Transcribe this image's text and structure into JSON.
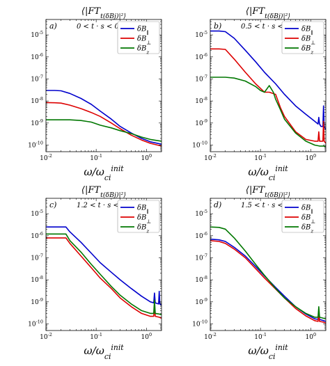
{
  "colors": {
    "par": "#0000cc",
    "perp": "#dd0000",
    "z": "#007700"
  },
  "chart_data": [
    {
      "type": "line",
      "panel_label": "a)",
      "title": "⟨|FT_t(δB_j)|²⟩",
      "time_range": "0 < t · s < 0.5",
      "xlabel": "ω/ω_ci^init",
      "xscale": "log",
      "yscale": "log",
      "xlim": [
        0.01,
        2
      ],
      "ylim": [
        5e-11,
        5e-05
      ],
      "xticks": [
        "10^-2",
        "10^-1",
        "10^0"
      ],
      "yticks": [
        "10^-10",
        "10^-9",
        "10^-8",
        "10^-7",
        "10^-6",
        "10^-5"
      ],
      "legend_position": "top-right",
      "series": [
        {
          "name": "δB_∥",
          "color_key": "par",
          "x": [
            0.01,
            0.015,
            0.02,
            0.03,
            0.05,
            0.08,
            0.12,
            0.2,
            0.3,
            0.5,
            0.8,
            1.2,
            2
          ],
          "y": [
            3e-08,
            3e-08,
            2.9e-08,
            2.2e-08,
            1.3e-08,
            7e-09,
            3.5e-09,
            1.5e-09,
            7e-10,
            3.5e-10,
            2e-10,
            1.4e-10,
            1.1e-10
          ]
        },
        {
          "name": "δB_⊥",
          "color_key": "perp",
          "x": [
            0.01,
            0.015,
            0.02,
            0.03,
            0.05,
            0.08,
            0.12,
            0.2,
            0.3,
            0.5,
            0.8,
            1.2,
            2
          ],
          "y": [
            8.5e-09,
            8.3e-09,
            8e-09,
            6.5e-09,
            4.5e-09,
            3e-09,
            2e-09,
            1e-09,
            5.5e-10,
            2.8e-10,
            1.7e-10,
            1.2e-10,
            9e-11
          ]
        },
        {
          "name": "δB_z",
          "color_key": "z",
          "x": [
            0.01,
            0.02,
            0.03,
            0.05,
            0.08,
            0.12,
            0.2,
            0.3,
            0.5,
            0.8,
            1.2,
            2
          ],
          "y": [
            1.4e-09,
            1.4e-09,
            1.4e-09,
            1.3e-09,
            1.1e-09,
            8e-10,
            6e-10,
            4.5e-10,
            3.3e-10,
            2.3e-10,
            1.8e-10,
            1.5e-10
          ]
        }
      ]
    },
    {
      "type": "line",
      "panel_label": "b)",
      "title": "⟨|FT_t(δB_j)|²⟩",
      "time_range": "0.5 < t · s < 1",
      "xlabel": "ω/ω_ci^init",
      "xscale": "log",
      "yscale": "log",
      "xlim": [
        0.01,
        2
      ],
      "ylim": [
        5e-11,
        5e-05
      ],
      "xticks": [
        "10^-2",
        "10^-1",
        "10^0"
      ],
      "yticks": [
        "10^-10",
        "10^-9",
        "10^-8",
        "10^-7",
        "10^-6",
        "10^-5"
      ],
      "legend_position": "top-right",
      "series": [
        {
          "name": "δB_∥",
          "color_key": "par",
          "x": [
            0.01,
            0.015,
            0.02,
            0.03,
            0.05,
            0.08,
            0.12,
            0.2,
            0.3,
            0.5,
            0.8,
            1.2,
            1.4,
            1.45,
            1.5,
            1.6,
            1.75,
            1.8,
            1.85,
            2
          ],
          "y": [
            1.5e-05,
            1.5e-05,
            1.4e-05,
            7e-06,
            2e-06,
            6e-07,
            2e-07,
            6e-08,
            2e-08,
            6e-09,
            2.5e-09,
            1.2e-09,
            9e-10,
            1.8e-09,
            9e-10,
            7e-10,
            7e-10,
            6e-09,
            7e-10,
            5e-10
          ]
        },
        {
          "name": "δB_⊥",
          "color_key": "perp",
          "x": [
            0.01,
            0.015,
            0.02,
            0.03,
            0.05,
            0.08,
            0.12,
            0.15,
            0.2,
            0.25,
            0.3,
            0.5,
            0.8,
            1.2,
            1.4,
            1.45,
            1.5,
            1.75,
            1.8,
            1.85,
            2
          ],
          "y": [
            2.3e-06,
            2.3e-06,
            2.2e-06,
            8e-07,
            2e-07,
            6e-08,
            2.5e-08,
            2.5e-08,
            2e-08,
            5e-09,
            2e-09,
            4e-10,
            1.8e-10,
            1.5e-10,
            1.5e-10,
            4e-10,
            1.5e-10,
            1.5e-10,
            1.2e-09,
            1.5e-10,
            1.2e-10
          ]
        },
        {
          "name": "δB_z",
          "color_key": "z",
          "x": [
            0.01,
            0.02,
            0.03,
            0.05,
            0.08,
            0.1,
            0.12,
            0.15,
            0.18,
            0.2,
            0.25,
            0.3,
            0.5,
            0.8,
            1.2,
            1.5,
            1.8,
            2
          ],
          "y": [
            1.2e-07,
            1.2e-07,
            1.1e-07,
            8e-08,
            4.5e-08,
            3e-08,
            2.5e-08,
            5e-08,
            2.5e-08,
            1.2e-08,
            4e-09,
            1.5e-09,
            3.5e-10,
            1.5e-10,
            1e-10,
            9e-11,
            9e-11,
            8e-11
          ]
        }
      ]
    },
    {
      "type": "line",
      "panel_label": "c)",
      "title": "⟨|FT_t(δB_j)|²⟩",
      "time_range": "1.2 < t · s < 1.5",
      "xlabel": "ω/ω_ci^init",
      "xscale": "log",
      "yscale": "log",
      "xlim": [
        0.01,
        2
      ],
      "ylim": [
        5e-11,
        5e-05
      ],
      "xticks": [
        "10^-2",
        "10^-1",
        "10^0"
      ],
      "yticks": [
        "10^-10",
        "10^-9",
        "10^-8",
        "10^-7",
        "10^-6",
        "10^-5"
      ],
      "legend_position": "top-right",
      "series": [
        {
          "name": "δB_∥",
          "color_key": "par",
          "x": [
            0.01,
            0.015,
            0.025,
            0.03,
            0.05,
            0.08,
            0.12,
            0.2,
            0.3,
            0.5,
            0.8,
            1.2,
            1.4,
            1.45,
            1.5,
            1.75,
            1.8,
            1.85,
            2
          ],
          "y": [
            2.5e-06,
            2.5e-06,
            2.5e-06,
            1.5e-06,
            5e-07,
            1.6e-07,
            6e-08,
            2.2e-08,
            1e-08,
            4e-09,
            1.8e-09,
            1e-09,
            9e-10,
            2.5e-09,
            9e-10,
            8e-10,
            3e-09,
            8e-10,
            7e-10
          ]
        },
        {
          "name": "δB_⊥",
          "color_key": "perp",
          "x": [
            0.01,
            0.015,
            0.025,
            0.03,
            0.05,
            0.08,
            0.12,
            0.2,
            0.3,
            0.5,
            0.8,
            1.2,
            1.4,
            1.45,
            1.5,
            1.8,
            2
          ],
          "y": [
            8e-07,
            8e-07,
            8e-07,
            4.5e-07,
            1.2e-07,
            3.5e-08,
            1.2e-08,
            4e-09,
            1.5e-09,
            6e-10,
            3e-10,
            2.2e-10,
            2.2e-10,
            7e-10,
            2.2e-10,
            2e-10,
            1.8e-10
          ]
        },
        {
          "name": "δB_z",
          "color_key": "z",
          "x": [
            0.01,
            0.015,
            0.025,
            0.03,
            0.05,
            0.08,
            0.12,
            0.2,
            0.3,
            0.5,
            0.8,
            1.2,
            1.4,
            1.45,
            1.5,
            1.8,
            2
          ],
          "y": [
            1.2e-06,
            1.2e-06,
            1.2e-06,
            6e-07,
            1.8e-07,
            5e-08,
            1.8e-08,
            5e-09,
            2e-09,
            8e-10,
            4e-10,
            3e-10,
            3e-10,
            1.2e-09,
            3e-10,
            2.8e-10,
            2.6e-10
          ]
        }
      ]
    },
    {
      "type": "line",
      "panel_label": "d)",
      "title": "⟨|FT_t(δB_j)|²⟩",
      "time_range": "1.5 < t · s < 2",
      "xlabel": "ω/ω_ci^init",
      "xscale": "log",
      "yscale": "log",
      "xlim": [
        0.01,
        2
      ],
      "ylim": [
        5e-11,
        5e-05
      ],
      "xticks": [
        "10^-2",
        "10^-1",
        "10^0"
      ],
      "yticks": [
        "10^-10",
        "10^-9",
        "10^-8",
        "10^-7",
        "10^-6",
        "10^-5"
      ],
      "legend_position": "top-right",
      "series": [
        {
          "name": "δB_∥",
          "color_key": "par",
          "x": [
            0.01,
            0.015,
            0.02,
            0.03,
            0.05,
            0.08,
            0.12,
            0.2,
            0.3,
            0.5,
            0.8,
            1.2,
            1.4,
            1.45,
            1.5,
            1.8,
            2
          ],
          "y": [
            7e-07,
            6.5e-07,
            5.5e-07,
            3e-07,
            1.2e-07,
            4e-08,
            1.5e-08,
            4.5e-09,
            1.8e-09,
            6e-10,
            2.8e-10,
            1.7e-10,
            1.6e-10,
            3e-10,
            1.6e-10,
            1.4e-10,
            1.3e-10
          ]
        },
        {
          "name": "δB_⊥",
          "color_key": "perp",
          "x": [
            0.01,
            0.015,
            0.02,
            0.03,
            0.05,
            0.08,
            0.12,
            0.2,
            0.3,
            0.5,
            0.8,
            1.2,
            1.4,
            1.45,
            1.5,
            1.8,
            2
          ],
          "y": [
            6e-07,
            5.5e-07,
            4.5e-07,
            2.5e-07,
            1e-07,
            3.2e-08,
            1.2e-08,
            3.8e-09,
            1.5e-09,
            5e-10,
            2.3e-10,
            1.4e-10,
            1.3e-10,
            3e-10,
            1.3e-10,
            1.2e-10,
            1.1e-10
          ]
        },
        {
          "name": "δB_z",
          "color_key": "z",
          "x": [
            0.01,
            0.015,
            0.02,
            0.03,
            0.05,
            0.08,
            0.12,
            0.2,
            0.3,
            0.5,
            0.8,
            1.2,
            1.4,
            1.45,
            1.5,
            1.8,
            2
          ],
          "y": [
            2.5e-06,
            2.4e-06,
            2e-06,
            8e-07,
            2e-07,
            5e-08,
            1.6e-08,
            4e-09,
            1.5e-09,
            6e-10,
            3e-10,
            2e-10,
            2e-10,
            6e-10,
            2e-10,
            1.8e-10,
            1.7e-10
          ]
        }
      ]
    }
  ]
}
